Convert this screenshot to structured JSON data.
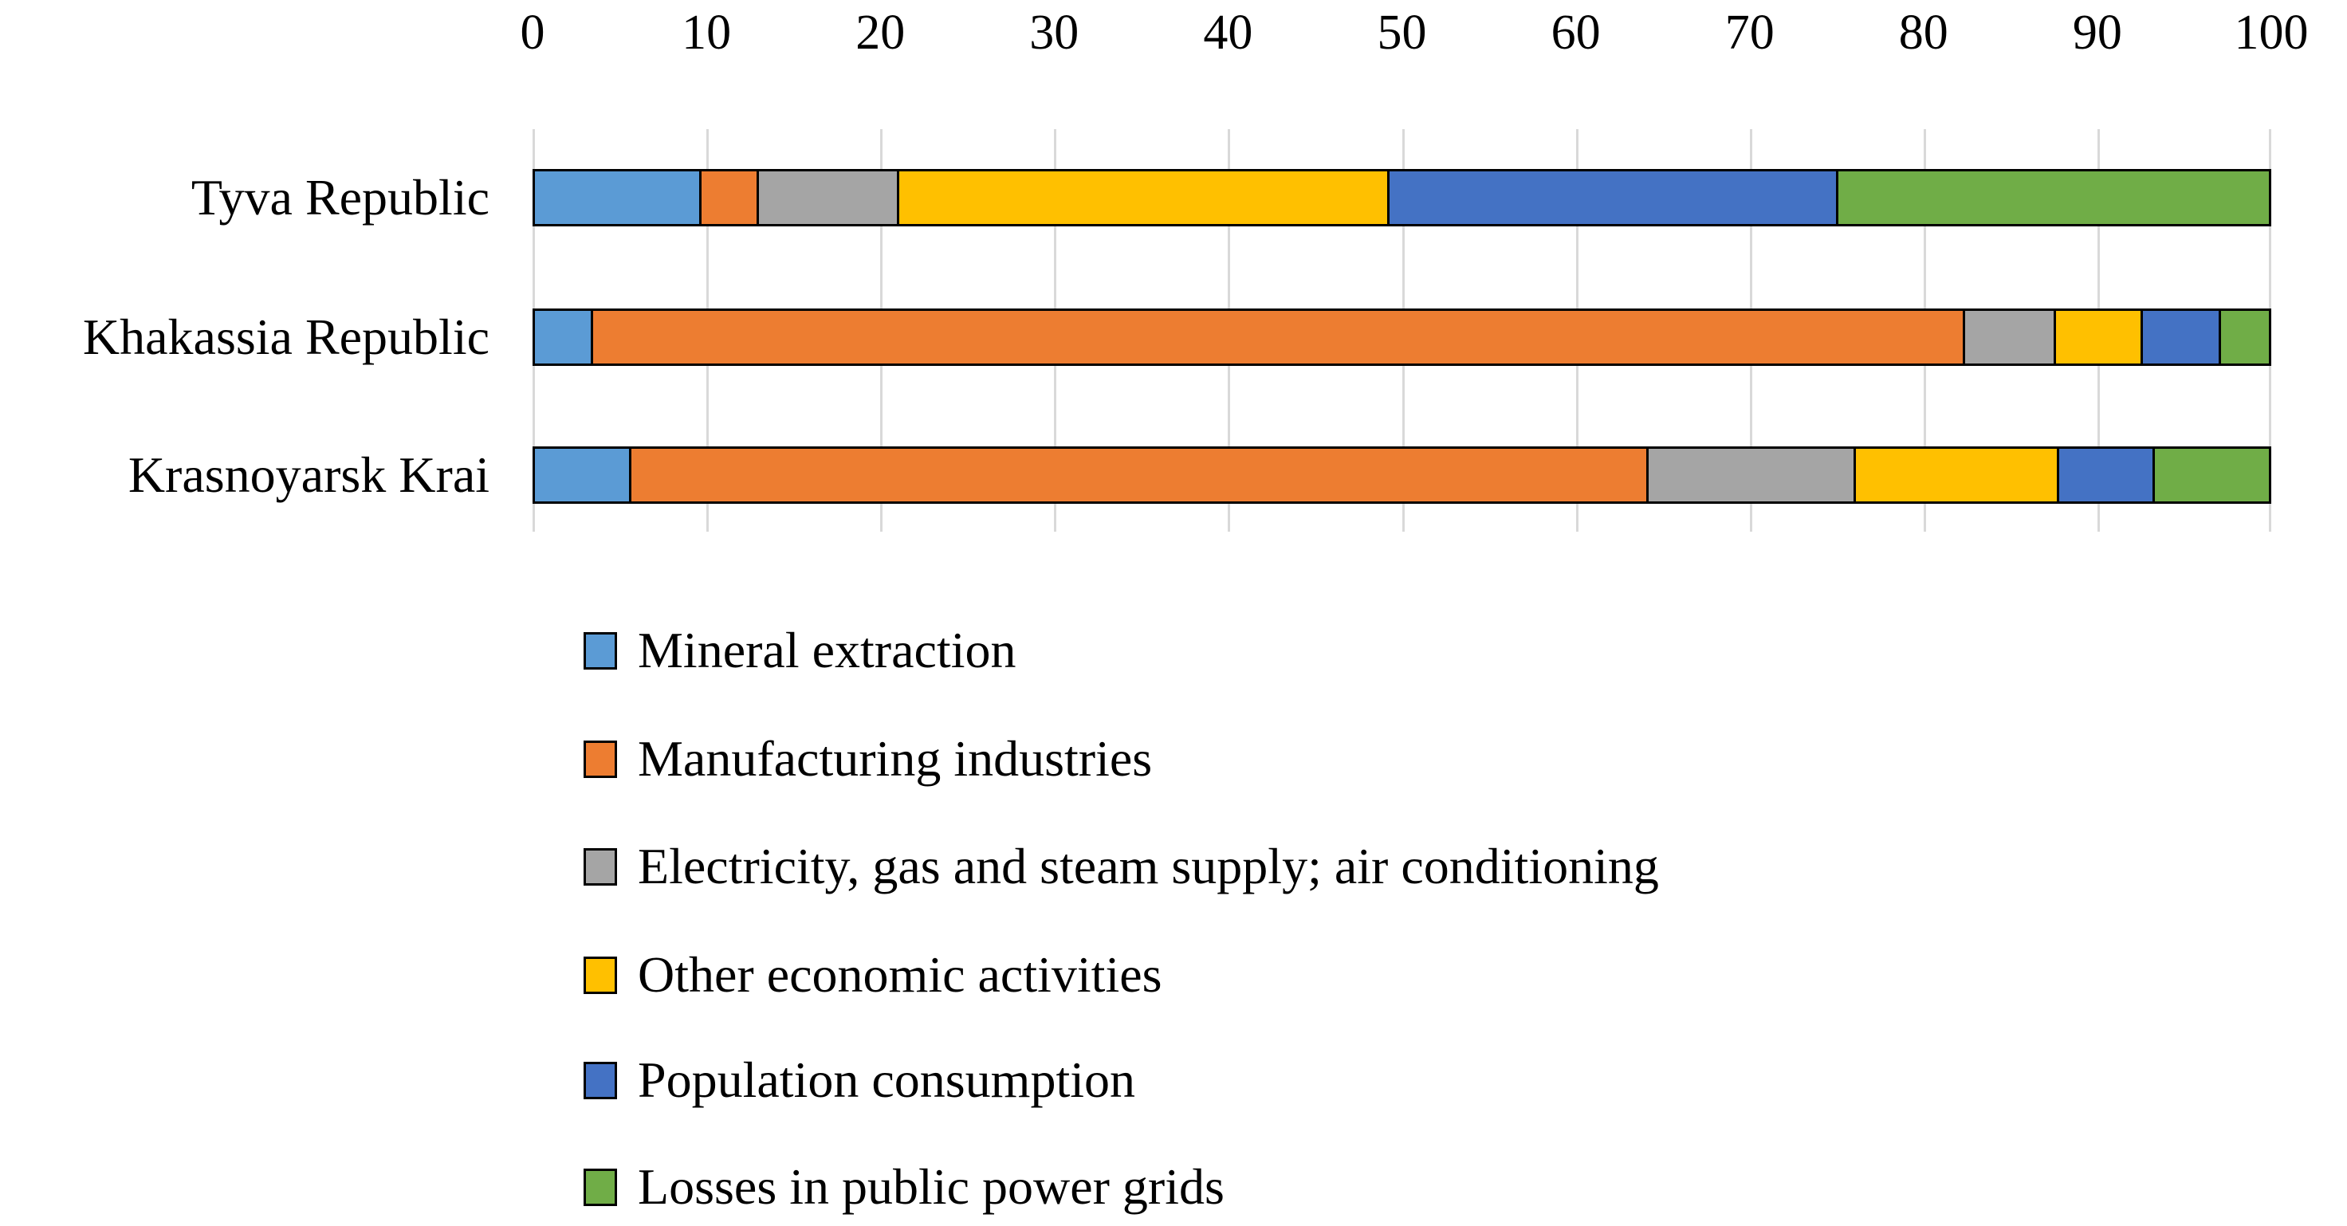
{
  "chart_data": {
    "type": "bar",
    "orientation": "horizontal",
    "stacked": true,
    "title": "",
    "xlabel": "",
    "ylabel": "",
    "categories": [
      "Tyva Republic",
      "Khakassia Republic",
      "Krasnoyarsk Krai"
    ],
    "series": [
      {
        "name": "Mineral extraction",
        "color": "#5B9BD5",
        "values": [
          9.7,
          3.5,
          5.7
        ]
      },
      {
        "name": "Manufacturing industries",
        "color": "#ED7D31",
        "values": [
          3.3,
          78.9,
          58.5
        ]
      },
      {
        "name": "Electricity, gas and steam supply; air conditioning",
        "color": "#A5A5A5",
        "values": [
          8.1,
          5.2,
          11.9
        ]
      },
      {
        "name": "Other economic activities",
        "color": "#FFC000",
        "values": [
          28.2,
          5.0,
          11.7
        ]
      },
      {
        "name": "Population consumption",
        "color": "#4472C4",
        "values": [
          25.8,
          4.5,
          5.5
        ]
      },
      {
        "name": "Losses in public power grids",
        "color": "#70AD47",
        "values": [
          24.9,
          2.9,
          6.7
        ]
      }
    ],
    "x_axis": {
      "min": 0,
      "max": 100,
      "tick_step": 10,
      "tick_labels": [
        "0",
        "10",
        "20",
        "30",
        "40",
        "50",
        "60",
        "70",
        "80",
        "90",
        "100"
      ],
      "position": "top"
    },
    "grid": true,
    "gridline_color": "#D9D9D9",
    "bar_border_color": "#000000",
    "legend_position": "bottom"
  }
}
